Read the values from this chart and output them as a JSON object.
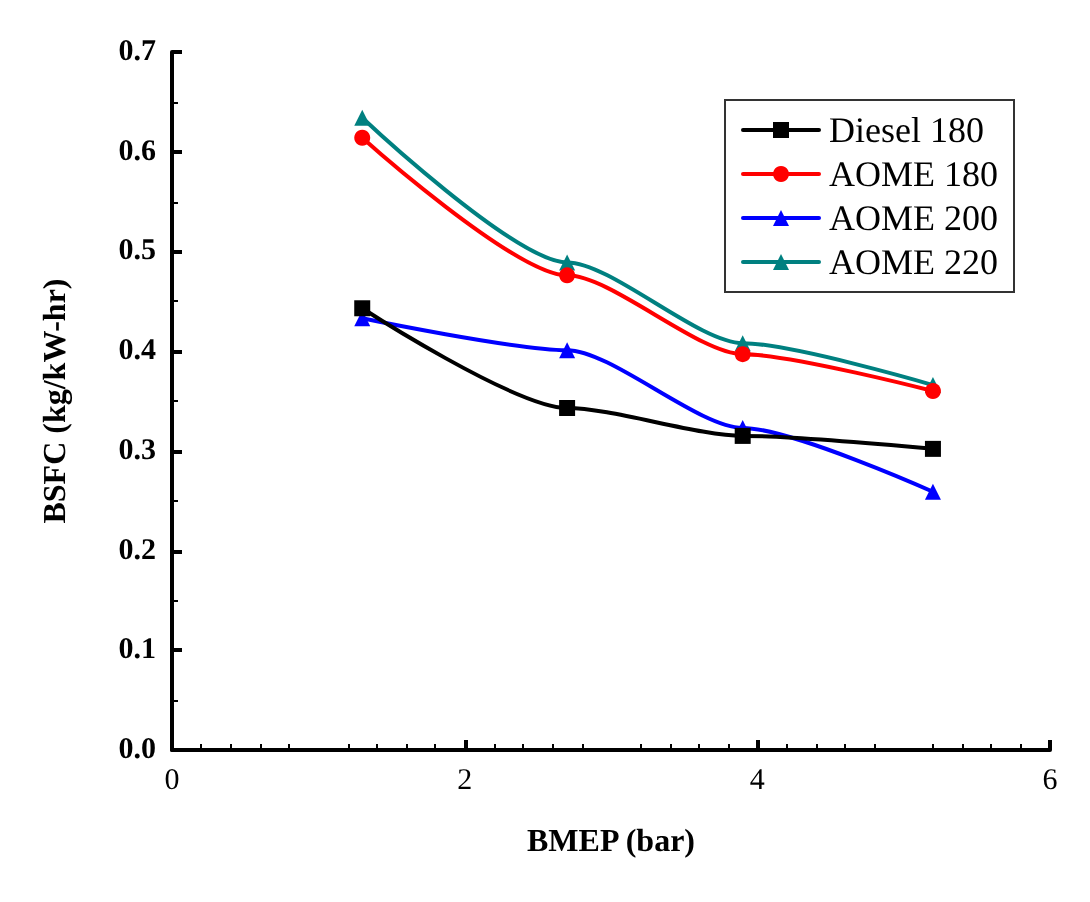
{
  "chart_data": {
    "type": "line",
    "xlabel": "BMEP (bar)",
    "ylabel": "BSFC (kg/kW-hr)",
    "x": [
      1.3,
      2.7,
      3.9,
      5.2
    ],
    "series": [
      {
        "name": "Diesel 180",
        "color": "#000000",
        "marker": "square",
        "values": [
          0.443,
          0.343,
          0.315,
          0.302
        ]
      },
      {
        "name": "AOME 180",
        "color": "#ff0000",
        "marker": "circle",
        "values": [
          0.614,
          0.476,
          0.397,
          0.36
        ]
      },
      {
        "name": "AOME 200",
        "color": "#0000ff",
        "marker": "triangle",
        "values": [
          0.433,
          0.401,
          0.323,
          0.259
        ]
      },
      {
        "name": "AOME 220",
        "color": "#008080",
        "marker": "triangle",
        "values": [
          0.634,
          0.489,
          0.408,
          0.366
        ]
      }
    ],
    "xlim": [
      0,
      6
    ],
    "xticks": [
      0,
      2,
      4,
      6
    ],
    "ylim": [
      0,
      0.7
    ],
    "yticks": [
      {
        "value": 0,
        "label": "0.0"
      },
      0.1,
      0.2,
      0.3,
      0.4,
      0.5,
      0.6,
      0.7
    ],
    "legend": "top right",
    "grid": false,
    "line_style": "solid"
  }
}
